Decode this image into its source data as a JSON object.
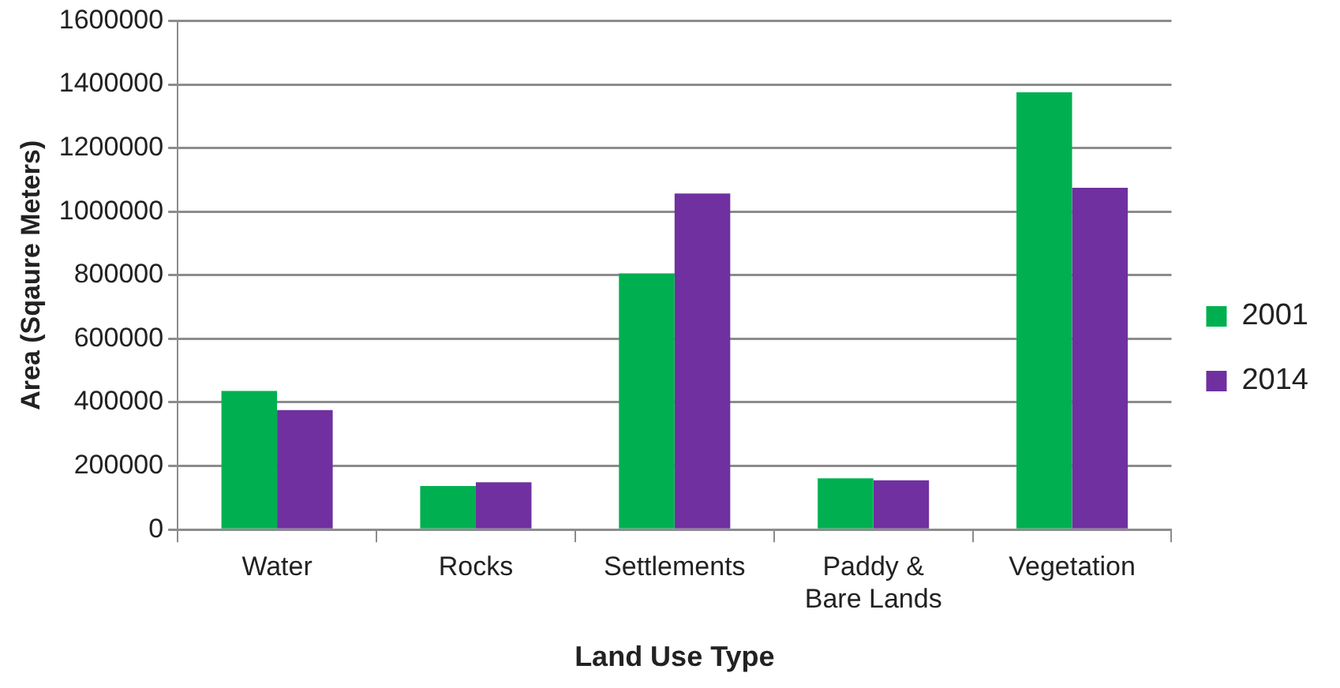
{
  "chart_data": {
    "type": "bar",
    "xlabel": "Land Use Type",
    "ylabel": "Area (Sqaure Meters)",
    "categories": [
      "Water",
      "Rocks",
      "Settlements",
      "Paddy & Bare Lands",
      "Vegetation"
    ],
    "series": [
      {
        "name": "2001",
        "color": "#00b050",
        "values": [
          436000,
          137000,
          806000,
          161000,
          1375000
        ]
      },
      {
        "name": "2014",
        "color": "#7030a0",
        "values": [
          376000,
          149000,
          1057000,
          155000,
          1075000
        ]
      }
    ],
    "ylim": [
      0,
      1600000
    ],
    "yticks": [
      0,
      200000,
      400000,
      600000,
      800000,
      1000000,
      1200000,
      1400000,
      1600000
    ],
    "grid": "y",
    "legend": "right"
  }
}
